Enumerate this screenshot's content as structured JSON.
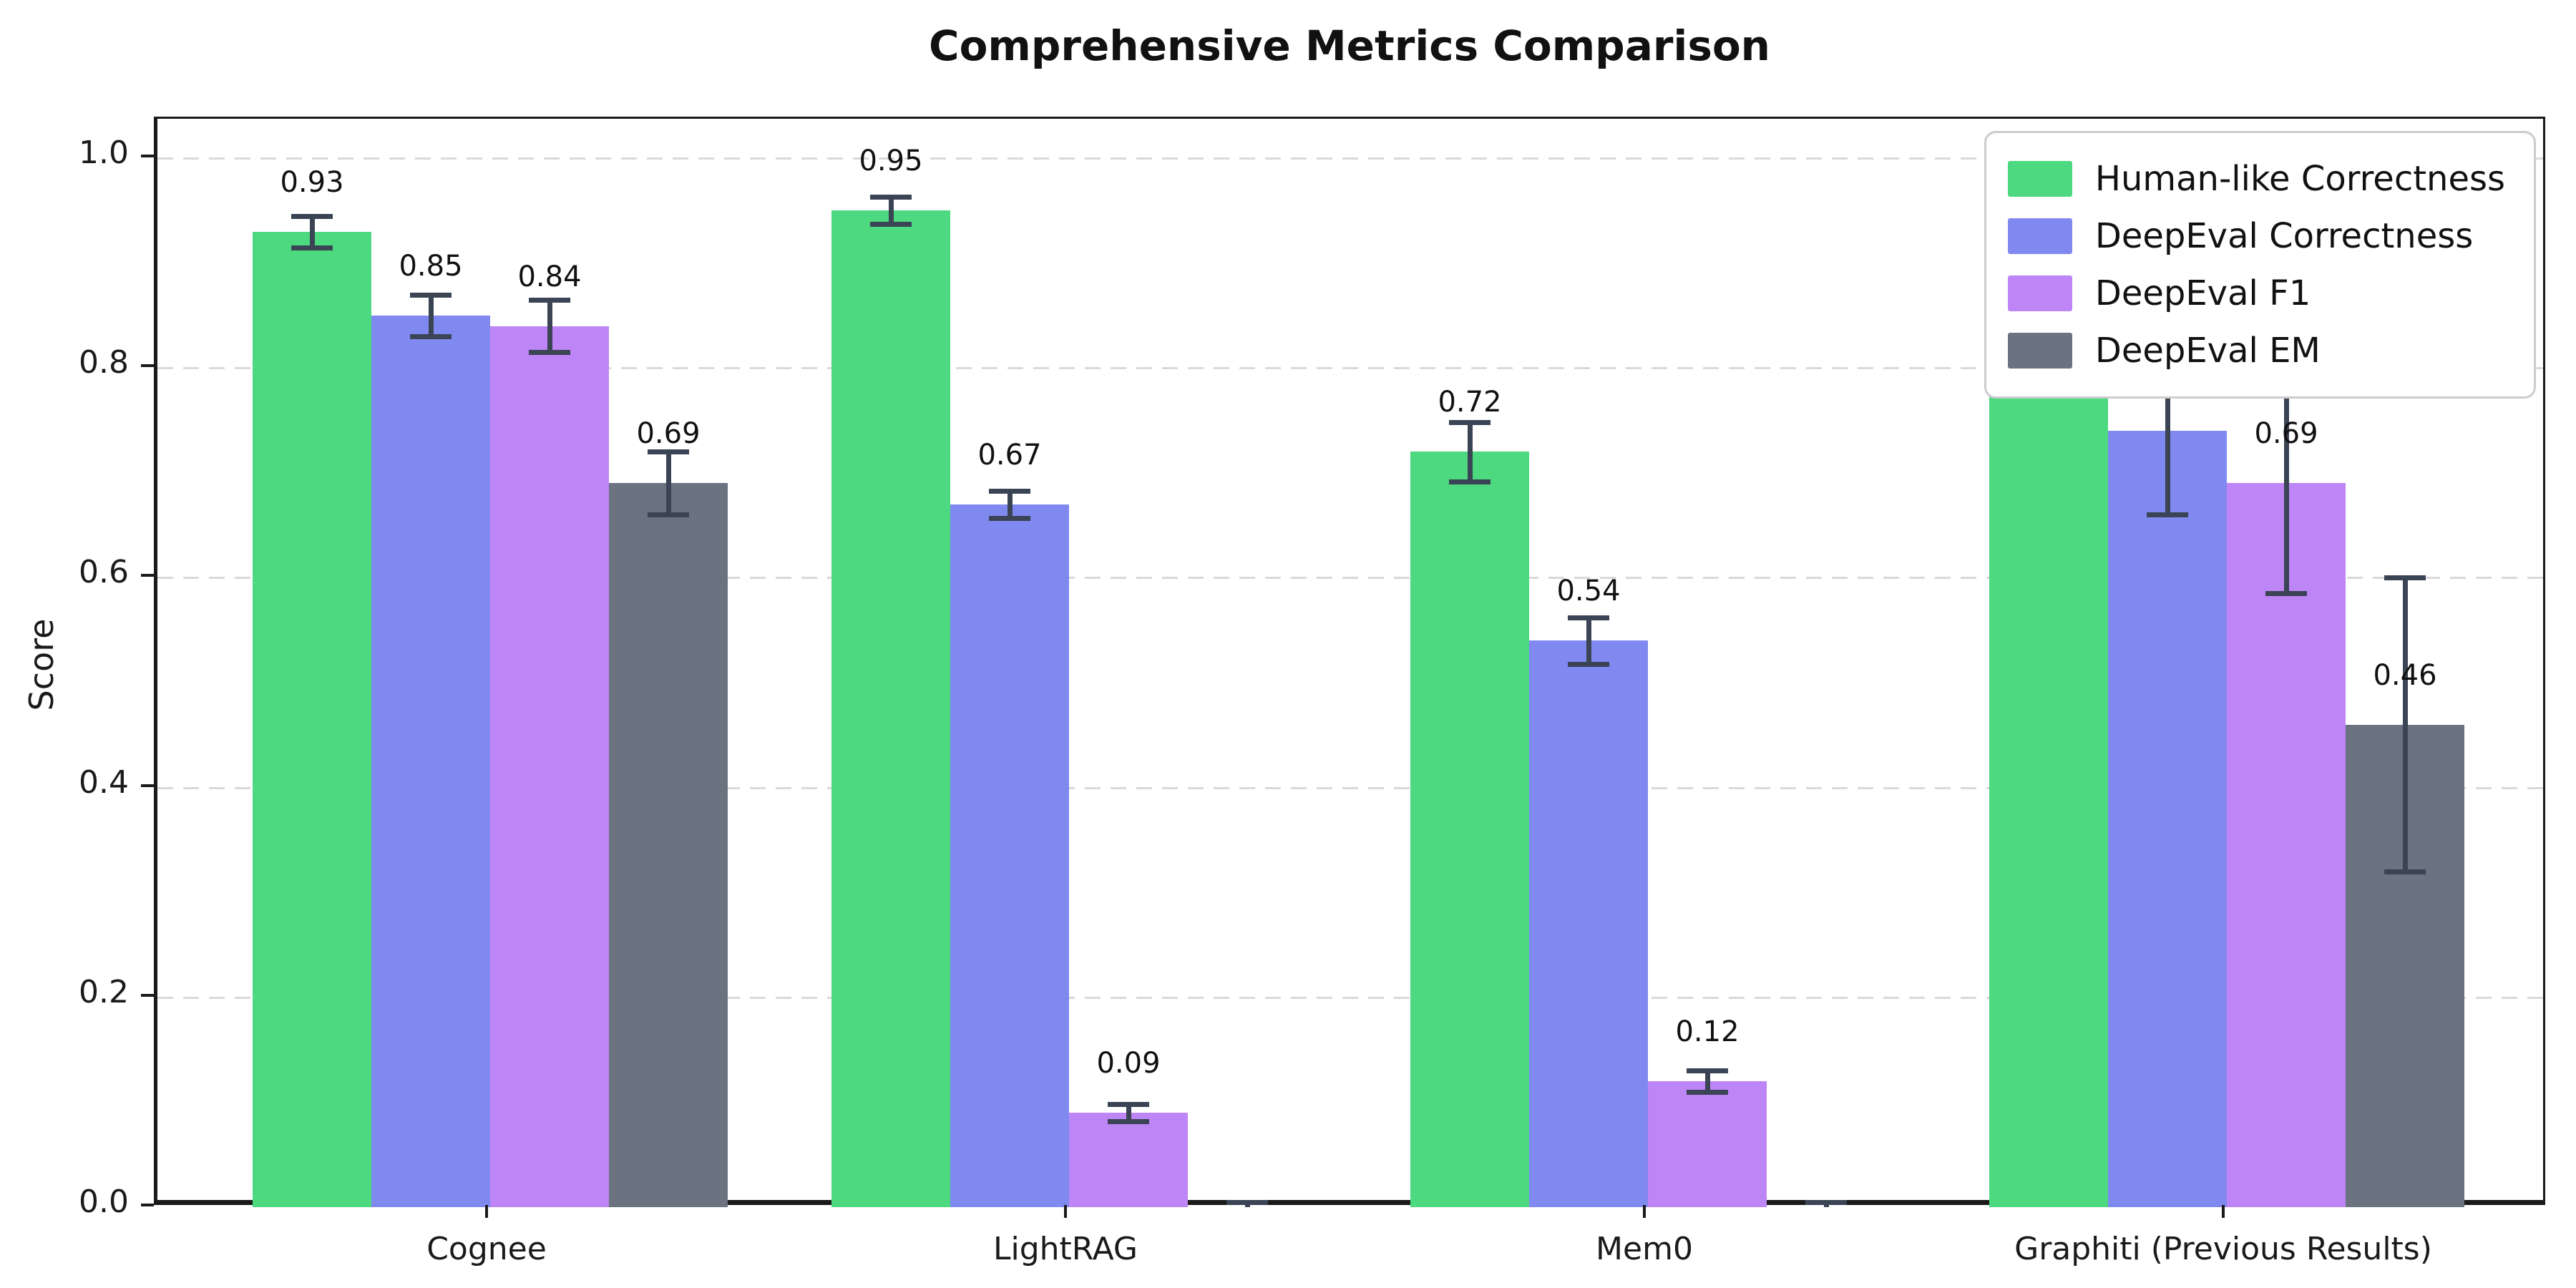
{
  "chart_data": {
    "type": "bar",
    "title": "Comprehensive Metrics Comparison",
    "ylabel": "Score",
    "xlabel": "",
    "categories": [
      "Cognee",
      "LightRAG",
      "Mem0",
      "Graphiti (Previous Results)"
    ],
    "series": [
      {
        "name": "Human-like Correctness",
        "color": "#4cd97f",
        "values": [
          0.93,
          0.95,
          0.72,
          0.88
        ],
        "errors": [
          0.015,
          0.013,
          0.028,
          0.078
        ]
      },
      {
        "name": "DeepEval Correctness",
        "color": "#8089f0",
        "values": [
          0.85,
          0.67,
          0.54,
          0.74
        ],
        "errors": [
          0.02,
          0.013,
          0.022,
          0.08
        ]
      },
      {
        "name": "DeepEval F1",
        "color": "#bd85f5",
        "values": [
          0.84,
          0.09,
          0.12,
          0.69
        ],
        "errors": [
          0.025,
          0.008,
          0.01,
          0.105
        ]
      },
      {
        "name": "DeepEval EM",
        "color": "#6b7280",
        "values": [
          0.69,
          0.0,
          0.0,
          0.46
        ],
        "errors": [
          0.03,
          0.005,
          0.005,
          0.14
        ]
      }
    ],
    "bar_value_labels": [
      [
        "0.93",
        "0.95",
        "0.72",
        "0.88"
      ],
      [
        "0.85",
        "0.67",
        "0.54",
        "0.74"
      ],
      [
        "0.84",
        "0.09",
        "0.12",
        "0.69"
      ],
      [
        "0.69",
        "",
        "",
        "0.46"
      ]
    ],
    "ylim": [
      0.0,
      1.036
    ],
    "yticks": [
      "0.0",
      "0.2",
      "0.4",
      "0.6",
      "0.8",
      "1.0"
    ],
    "grid": "dashed-horizontal",
    "legend_position": "upper-right",
    "colors": {
      "error_bar": "#3a4454",
      "gridline": "#d9d9d9",
      "axis": "#1a1a1a",
      "background": "#ffffff",
      "text": "#111111"
    }
  }
}
